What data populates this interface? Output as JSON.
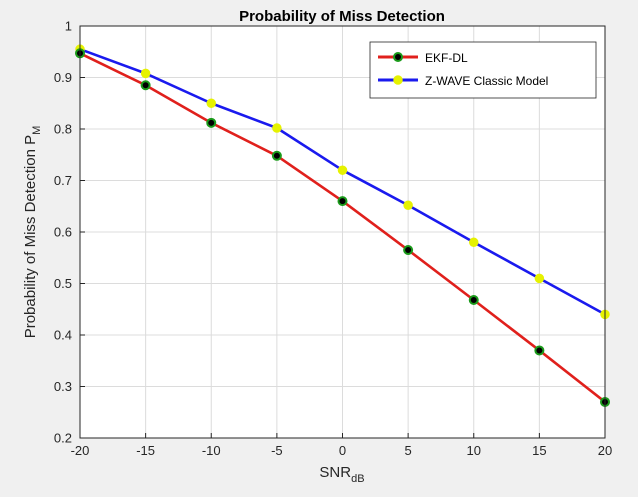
{
  "chart_data": {
    "type": "line",
    "title": "Probability of Miss Detection",
    "xlabel": {
      "main": "SNR",
      "sub": "dB"
    },
    "ylabel": {
      "main": "Probability of Miss Detection P",
      "sub": "M"
    },
    "x": [
      -20,
      -15,
      -10,
      -5,
      0,
      5,
      10,
      15,
      20
    ],
    "xlim": [
      -20,
      20
    ],
    "ylim": [
      0.2,
      1.0
    ],
    "xticks": [
      -20,
      -15,
      -10,
      -5,
      0,
      5,
      10,
      15,
      20
    ],
    "yticks": [
      0.2,
      0.3,
      0.4,
      0.5,
      0.6,
      0.7,
      0.8,
      0.9,
      1.0
    ],
    "xtick_labels": [
      "-20",
      "-15",
      "-10",
      "-5",
      "0",
      "5",
      "10",
      "15",
      "20"
    ],
    "ytick_labels": [
      "0.2",
      "0.3",
      "0.4",
      "0.5",
      "0.6",
      "0.7",
      "0.8",
      "0.9",
      "1"
    ],
    "grid": true,
    "legend_position": "top-right",
    "series": [
      {
        "name": "EKF-DL",
        "color": "#e0201c",
        "marker": "circle",
        "marker_face": "#000000",
        "marker_edge": "#1a9a1a",
        "values": [
          0.947,
          0.885,
          0.812,
          0.748,
          0.66,
          0.565,
          0.468,
          0.37,
          0.27
        ]
      },
      {
        "name": "Z-WAVE Classic Model",
        "color": "#1a1aee",
        "marker": "circle",
        "marker_face": "#e6f200",
        "marker_edge": "#e6f200",
        "values": [
          0.955,
          0.908,
          0.85,
          0.802,
          0.72,
          0.652,
          0.58,
          0.51,
          0.44
        ]
      }
    ]
  }
}
